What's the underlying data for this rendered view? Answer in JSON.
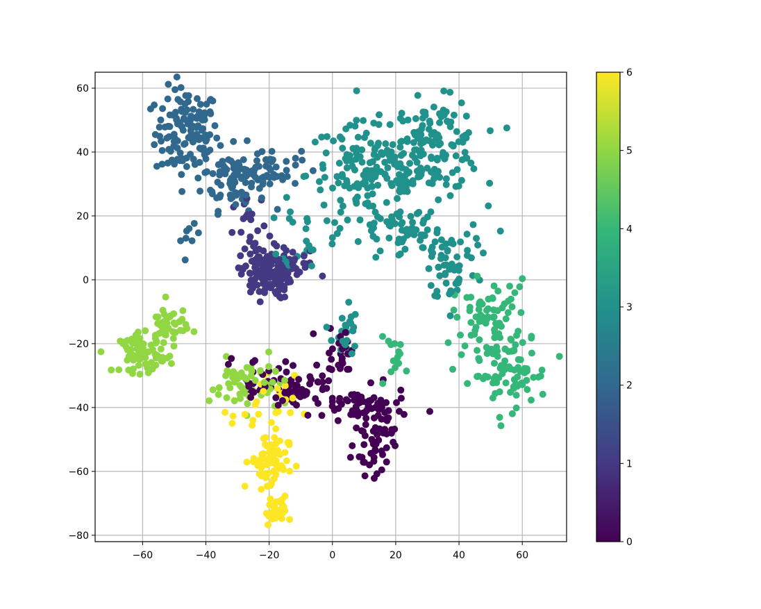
{
  "chart_data": {
    "type": "scatter",
    "title": "",
    "xlabel": "",
    "ylabel": "",
    "xlim": [
      -75,
      74
    ],
    "ylim": [
      -82,
      65
    ],
    "xticks": [
      -60,
      -40,
      -20,
      0,
      20,
      40,
      60
    ],
    "yticks": [
      -80,
      -60,
      -40,
      -20,
      0,
      20,
      40,
      60
    ],
    "x_tick_labels": [
      "−60",
      "−40",
      "−20",
      "0",
      "20",
      "40",
      "60"
    ],
    "y_tick_labels": [
      "−80",
      "−60",
      "−40",
      "−20",
      "0",
      "20",
      "40",
      "60"
    ],
    "grid": true,
    "colormap": "viridis",
    "colorbar": {
      "range": [
        0,
        6
      ],
      "ticks": [
        0,
        1,
        2,
        3,
        4,
        5,
        6
      ],
      "tick_labels": [
        "0",
        "1",
        "2",
        "3",
        "4",
        "5",
        "6"
      ],
      "colors": [
        "#440154",
        "#443983",
        "#31688e",
        "#21918c",
        "#35b779",
        "#90d743",
        "#fde725"
      ]
    },
    "clusters": [
      {
        "class": 2,
        "cx": -46,
        "cy": 46,
        "sx": 5,
        "sy": 7,
        "n": 130
      },
      {
        "class": 2,
        "cx": -31,
        "cy": 32,
        "sx": 5,
        "sy": 5,
        "n": 80
      },
      {
        "class": 2,
        "cx": -20,
        "cy": 35,
        "sx": 5,
        "sy": 3,
        "n": 45
      },
      {
        "class": 2,
        "cx": -45,
        "cy": 13,
        "sx": 1.5,
        "sy": 2,
        "n": 8
      },
      {
        "class": 3,
        "cx": 12,
        "cy": 33,
        "sx": 10,
        "sy": 8,
        "n": 170
      },
      {
        "class": 3,
        "cx": 33,
        "cy": 42,
        "sx": 7,
        "sy": 7,
        "n": 130
      },
      {
        "class": 3,
        "cx": 25,
        "cy": 13,
        "sx": 12,
        "sy": 5,
        "n": 70
      },
      {
        "class": 3,
        "cx": 38,
        "cy": 3,
        "sx": 4,
        "sy": 5,
        "n": 45
      },
      {
        "class": 3,
        "cx": 4,
        "cy": -16,
        "sx": 2,
        "sy": 5,
        "n": 25
      },
      {
        "class": 3,
        "cx": -8,
        "cy": 14,
        "sx": 4,
        "sy": 5,
        "n": 20
      },
      {
        "class": 1,
        "cx": -21,
        "cy": 2,
        "sx": 4,
        "sy": 4,
        "n": 140
      },
      {
        "class": 1,
        "cx": -25,
        "cy": 14,
        "sx": 3,
        "sy": 6,
        "n": 20
      },
      {
        "class": 1,
        "cx": -10,
        "cy": 4,
        "sx": 3,
        "sy": 3,
        "n": 15
      },
      {
        "class": 4,
        "cx": 50,
        "cy": -12,
        "sx": 6,
        "sy": 6,
        "n": 80
      },
      {
        "class": 4,
        "cx": 56,
        "cy": -30,
        "sx": 6,
        "sy": 5,
        "n": 70
      },
      {
        "class": 4,
        "cx": 20,
        "cy": -24,
        "sx": 3,
        "sy": 3,
        "n": 15
      },
      {
        "class": 5,
        "cx": -60,
        "cy": -23,
        "sx": 3.5,
        "sy": 3,
        "n": 65
      },
      {
        "class": 5,
        "cx": -52,
        "cy": -15,
        "sx": 3,
        "sy": 4,
        "n": 45
      },
      {
        "class": 5,
        "cx": -27,
        "cy": -33,
        "sx": 6,
        "sy": 4,
        "n": 55
      },
      {
        "class": 0,
        "cx": -10,
        "cy": -35,
        "sx": 6,
        "sy": 3,
        "n": 60
      },
      {
        "class": 0,
        "cx": 10,
        "cy": -40,
        "sx": 7,
        "sy": 3,
        "n": 60
      },
      {
        "class": 0,
        "cx": 13,
        "cy": -51,
        "sx": 3,
        "sy": 5,
        "n": 50
      },
      {
        "class": 0,
        "cx": 3,
        "cy": -22,
        "sx": 3,
        "sy": 4,
        "n": 25
      },
      {
        "class": 0,
        "cx": -24,
        "cy": -30,
        "sx": 5,
        "sy": 3,
        "n": 20
      },
      {
        "class": 6,
        "cx": -20,
        "cy": -57,
        "sx": 3,
        "sy": 5,
        "n": 75
      },
      {
        "class": 6,
        "cx": -18,
        "cy": -73,
        "sx": 1.6,
        "sy": 2,
        "n": 25
      },
      {
        "class": 6,
        "cx": -22,
        "cy": -40,
        "sx": 5,
        "sy": 5,
        "n": 25
      }
    ]
  }
}
